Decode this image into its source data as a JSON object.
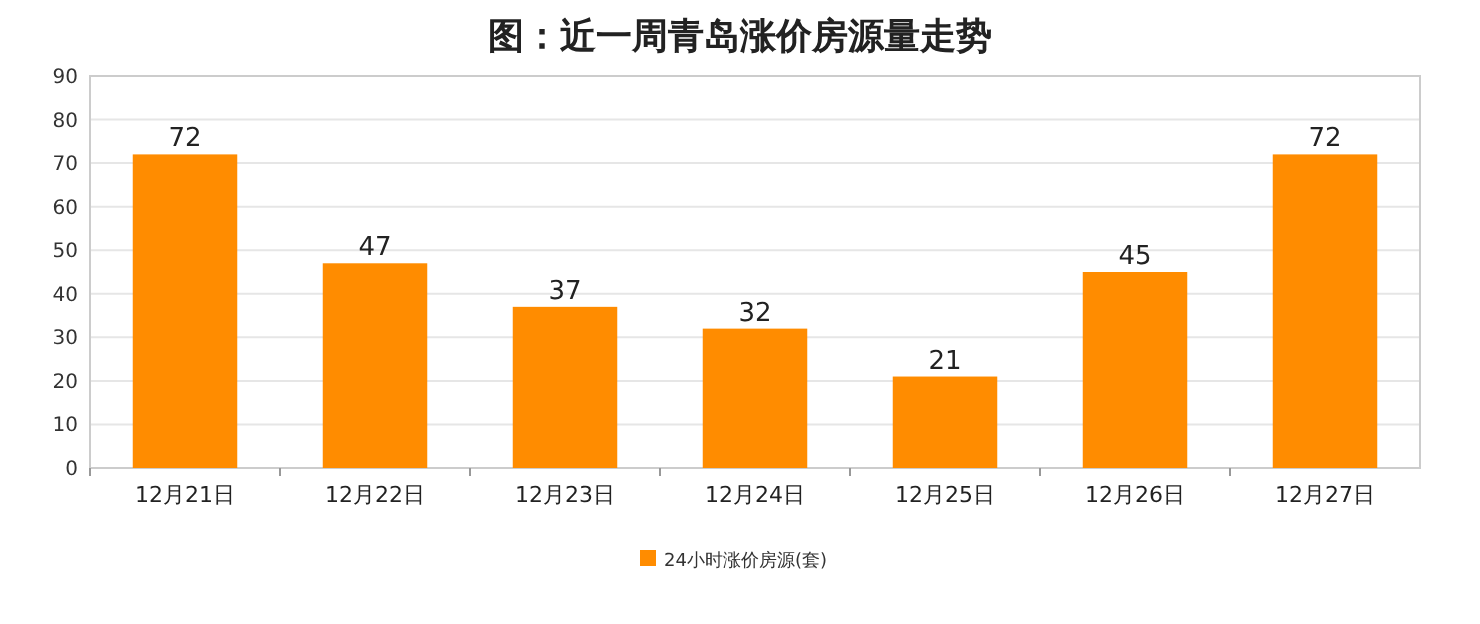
{
  "chart_data": {
    "type": "bar",
    "title": "图：近一周青岛涨价房源量走势",
    "categories": [
      "12月21日",
      "12月22日",
      "12月23日",
      "12月24日",
      "12月25日",
      "12月26日",
      "12月27日"
    ],
    "series": [
      {
        "name": "24小时涨价房源(套)",
        "color": "#ff8c00",
        "values": [
          72,
          47,
          37,
          32,
          21,
          45,
          72
        ]
      }
    ],
    "ylim": [
      0,
      90
    ],
    "yticks": [
      0,
      10,
      20,
      30,
      40,
      50,
      60,
      70,
      80,
      90
    ],
    "grid": "y",
    "legend": "bottom",
    "data_labels": true
  }
}
